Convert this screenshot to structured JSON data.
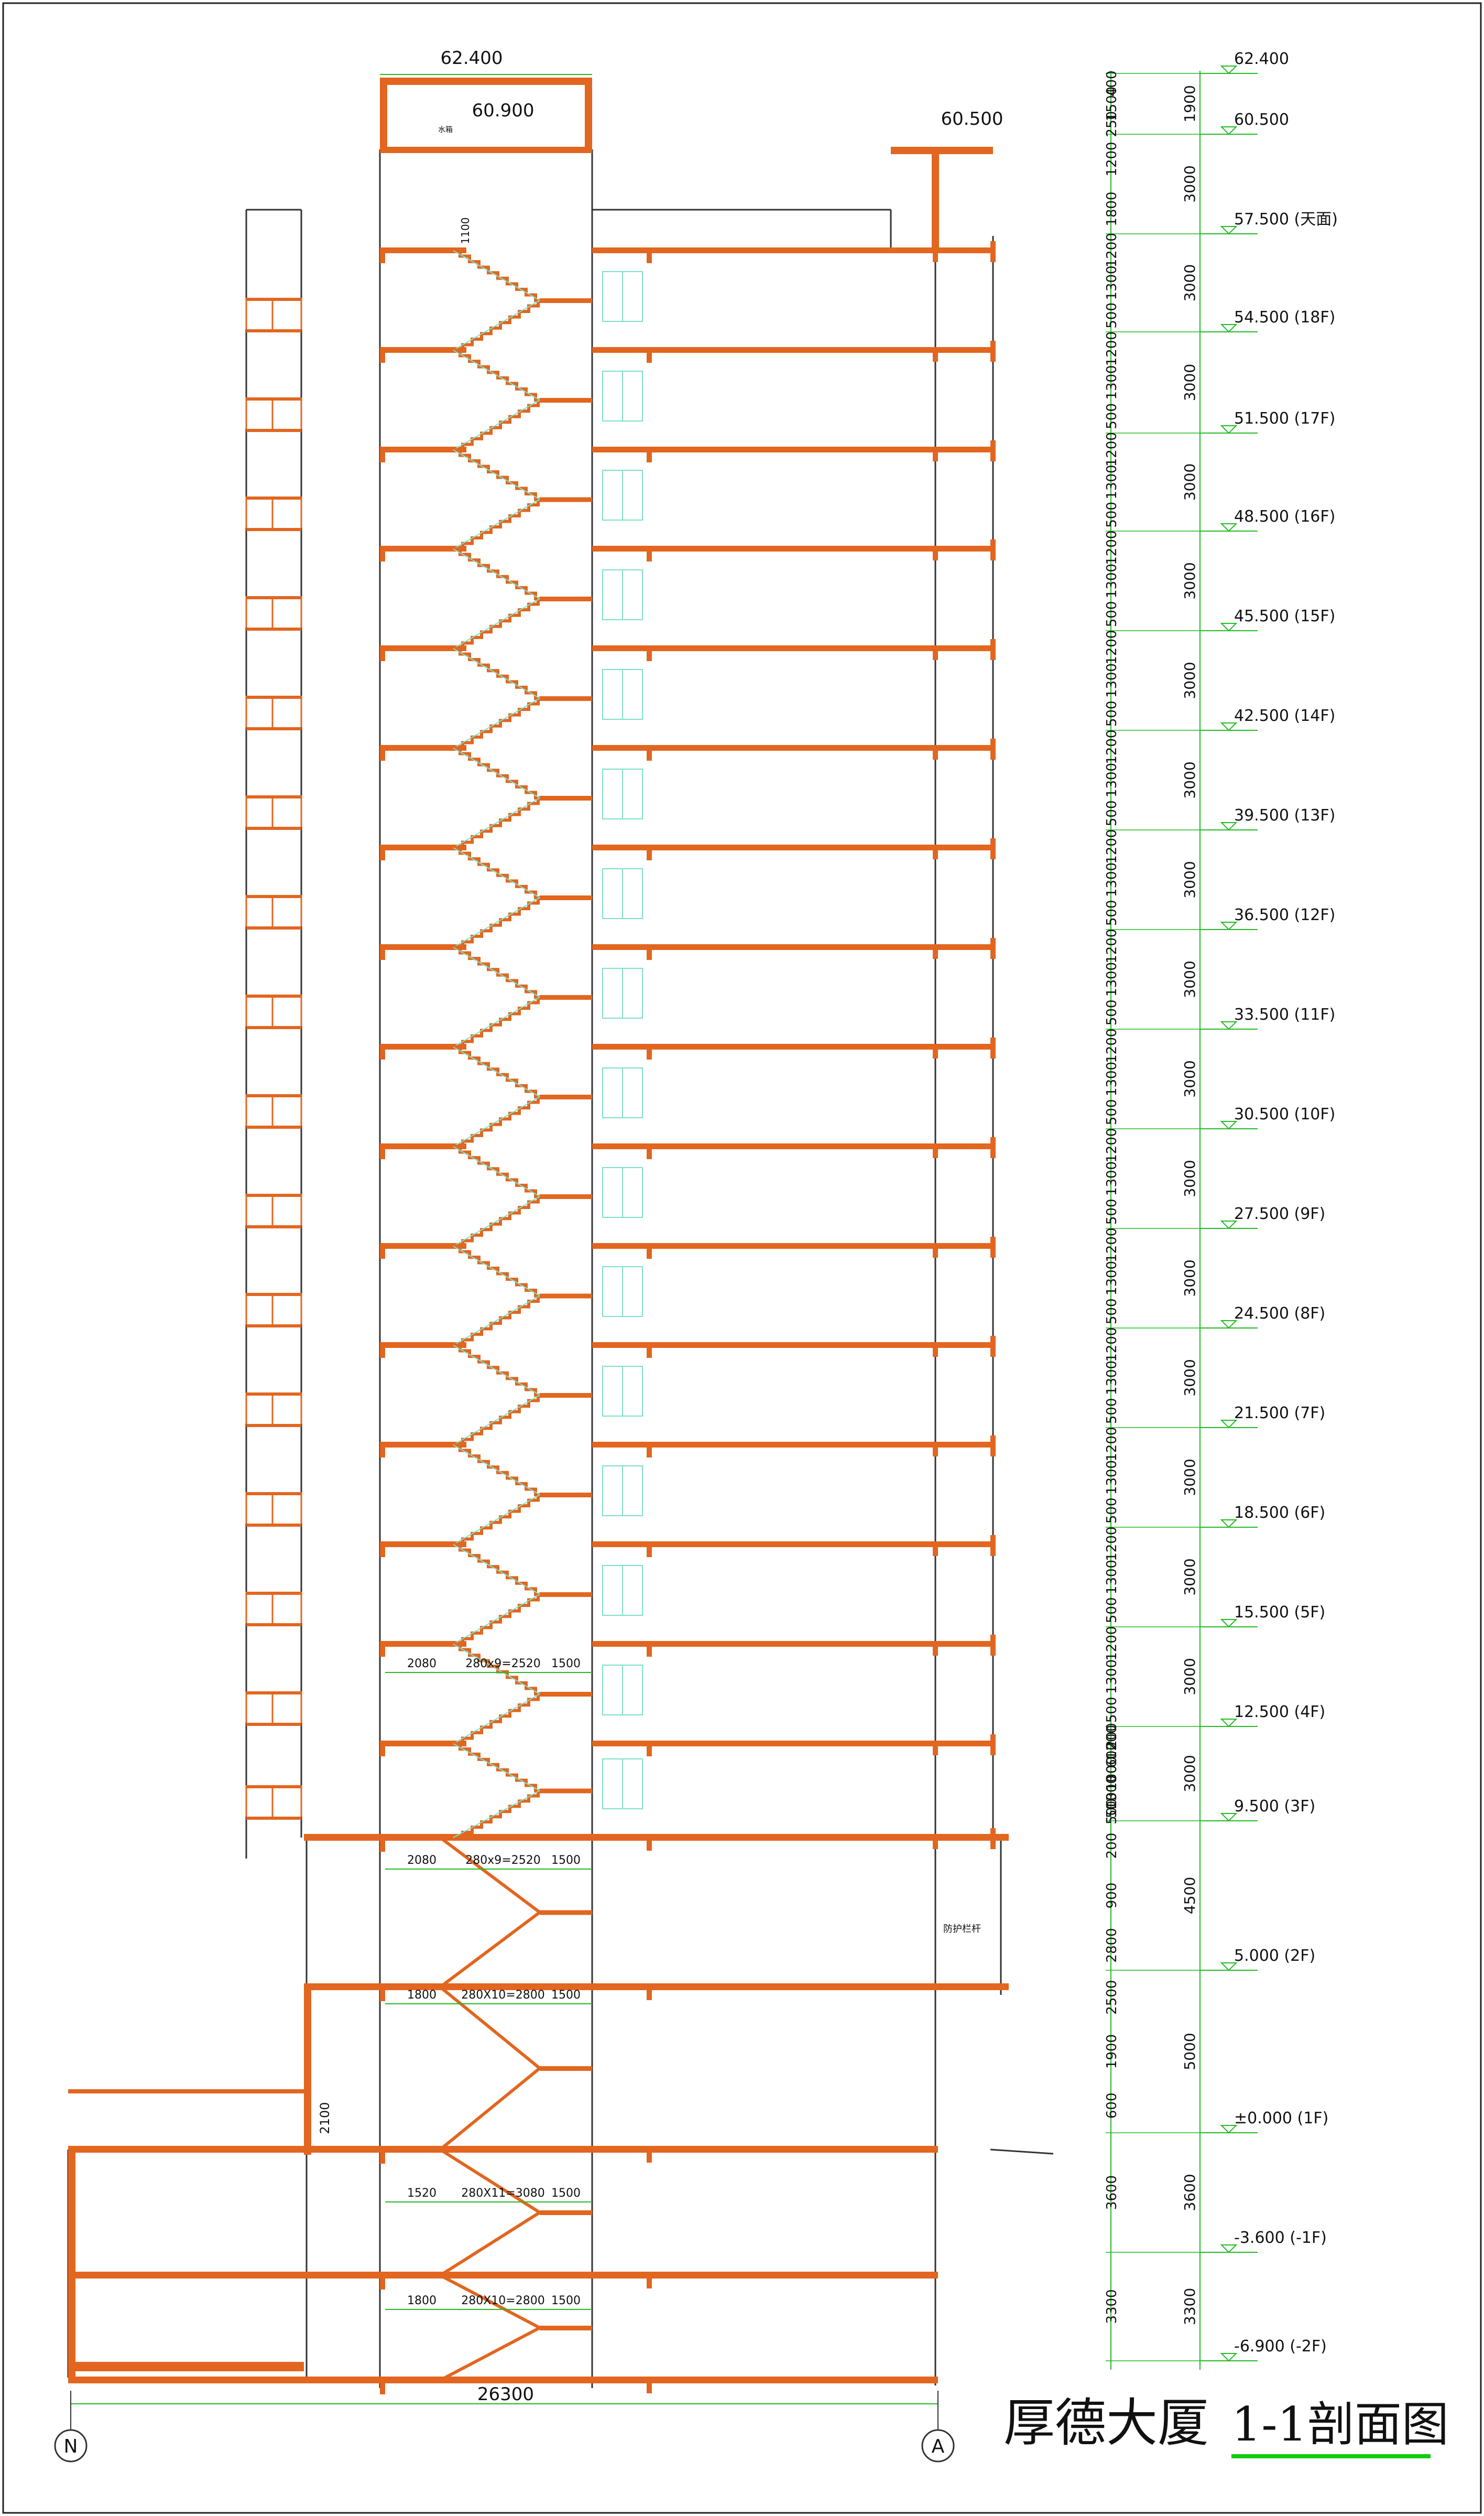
{
  "title": {
    "main": "厚德大厦",
    "sub": "1-1剖面图"
  },
  "axes": {
    "left": "N",
    "right": "A"
  },
  "overall_width_dim": "26300",
  "roof": {
    "top_level": "62.400",
    "machine_level": "60.900",
    "machine_label": "水箱",
    "east_parapet_level": "60.500",
    "rail_height_dim": "1100"
  },
  "notes": {
    "guardrail": "防护栏杆",
    "door_height_dim": "2100"
  },
  "floor_levels": [
    "62.400",
    "60.500",
    "57.500 (天面)",
    "54.500 (18F)",
    "51.500 (17F)",
    "48.500 (16F)",
    "45.500 (15F)",
    "42.500 (14F)",
    "39.500 (13F)",
    "36.500 (12F)",
    "33.500 (11F)",
    "30.500 (10F)",
    "27.500 (9F)",
    "24.500 (8F)",
    "21.500 (7F)",
    "18.500 (6F)",
    "15.500 (5F)",
    "12.500 (4F)",
    "9.500 (3F)",
    "5.000 (2F)",
    "±0.000 (1F)",
    "-3.600 (-1F)",
    "-6.900 (-2F)"
  ],
  "storey_dims": [
    "1900",
    "3000",
    "3000",
    "3000",
    "3000",
    "3000",
    "3000",
    "3000",
    "3000",
    "3000",
    "3000",
    "3000",
    "3000",
    "3000",
    "3000",
    "3000",
    "3000",
    "3000",
    "4500",
    "5000",
    "3600",
    "3300"
  ],
  "window_dims": {
    "roof_top": [
      "250",
      "1500",
      "400"
    ],
    "roof": [
      "1800",
      "1200"
    ],
    "typical": [
      "500",
      "1300",
      "1200"
    ],
    "f3": [
      "500",
      "1300",
      "1000",
      "600",
      "200"
    ],
    "f2": [
      "2800",
      "900",
      "200"
    ],
    "f1": [
      "600",
      "1900",
      "2500"
    ],
    "b1": [
      "3600"
    ],
    "b2": [
      "3300"
    ]
  },
  "stair_dims": [
    {
      "left": "2080",
      "mid": "280x9=2520",
      "right": "1500"
    },
    {
      "left": "2080",
      "mid": "280x9=2520",
      "right": "1500"
    },
    {
      "left": "1800",
      "mid": "280X10=2800",
      "right": "1500"
    },
    {
      "left": "1520",
      "mid": "280X11=3080",
      "right": "1500"
    },
    {
      "left": "1800",
      "mid": "280X10=2800",
      "right": "1500"
    }
  ],
  "colors": {
    "structure": "#e2661f",
    "dimension": "#22bb22",
    "outline": "#333333",
    "stair": "#7ee0c8",
    "title": "#1f33c9",
    "underline": "#11cc11"
  }
}
